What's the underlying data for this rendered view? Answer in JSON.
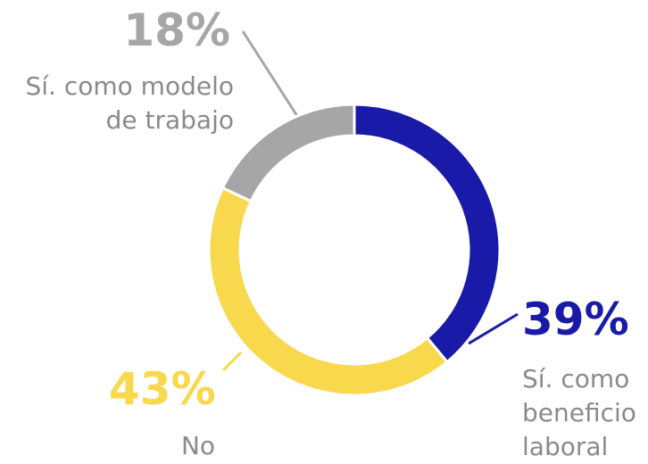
{
  "chart_data": {
    "type": "donut",
    "categories": [
      "Sí. como beneficio laboral",
      "No",
      "Sí. como modelo de trabajo"
    ],
    "values": [
      39,
      43,
      18
    ],
    "value_labels": [
      "39%",
      "43%",
      "18%"
    ],
    "colors": [
      "#1a1aa8",
      "#f8d84c",
      "#a6a6a6"
    ]
  }
}
